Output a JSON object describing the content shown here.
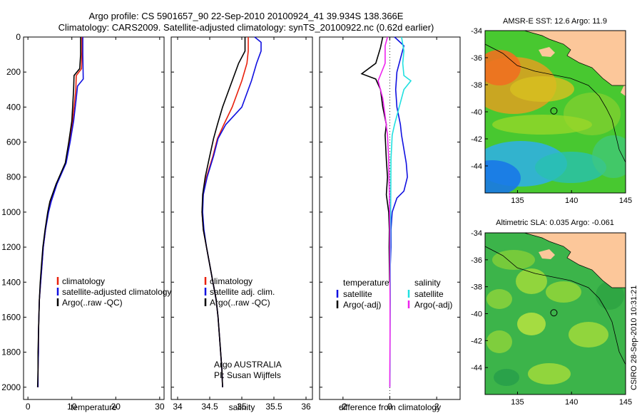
{
  "header": {
    "line1": "Argo profile: CS 5901657_90 22-Sep-2010 20100924_41 39.934S 138.366E",
    "line2": "Climatology: CARS2009. Satellite-adjusted climatology: synTS_20100922.nc (0.62d earlier)"
  },
  "colors": {
    "climatology": "#e8200c",
    "satellite": "#1010e0",
    "argo": "#000000",
    "salinity_satellite": "#20e0e0",
    "salinity_argo": "#ee22ee",
    "land": "#fcc79a",
    "ocean_green": "#3cb44a"
  },
  "chart_data": [
    {
      "type": "line",
      "name": "temperature-profile",
      "xlabel": "temperature",
      "xlim": [
        -1,
        31
      ],
      "xticks": [
        0,
        10,
        20,
        30
      ],
      "ylim": [
        2070,
        0
      ],
      "yticks": [
        0,
        200,
        400,
        600,
        800,
        1000,
        1200,
        1400,
        1600,
        1800,
        2000
      ],
      "legend_placement": "lower-center",
      "series": [
        {
          "key": "clim",
          "name": "climatology",
          "color": "#e8200c",
          "points": [
            [
              12.3,
              0
            ],
            [
              12.3,
              80
            ],
            [
              12.2,
              180
            ],
            [
              11.0,
              220
            ],
            [
              10.9,
              300
            ],
            [
              10.2,
              480
            ],
            [
              9.5,
              600
            ],
            [
              8.6,
              720
            ],
            [
              6.5,
              840
            ],
            [
              5.2,
              940
            ],
            [
              4.6,
              1000
            ],
            [
              4.0,
              1100
            ],
            [
              3.5,
              1200
            ],
            [
              3.2,
              1300
            ],
            [
              2.9,
              1400
            ],
            [
              2.6,
              1500
            ],
            [
              2.5,
              1600
            ],
            [
              2.4,
              1700
            ],
            [
              2.4,
              1800
            ],
            [
              2.3,
              1900
            ],
            [
              2.3,
              2000
            ]
          ]
        },
        {
          "key": "sat",
          "name": "satellite-adjusted climatology",
          "color": "#1010e0",
          "points": [
            [
              12.5,
              0
            ],
            [
              12.5,
              100
            ],
            [
              12.6,
              240
            ],
            [
              11.3,
              280
            ],
            [
              11.0,
              350
            ],
            [
              10.4,
              480
            ],
            [
              9.6,
              600
            ],
            [
              8.7,
              720
            ],
            [
              6.6,
              840
            ],
            [
              5.3,
              940
            ],
            [
              4.7,
              1000
            ],
            [
              4.0,
              1100
            ],
            [
              3.5,
              1200
            ],
            [
              3.2,
              1300
            ],
            [
              2.9,
              1400
            ],
            [
              2.6,
              1500
            ],
            [
              2.5,
              1600
            ],
            [
              2.4,
              1700
            ],
            [
              2.4,
              1800
            ],
            [
              2.3,
              1900
            ],
            [
              2.3,
              2000
            ]
          ]
        },
        {
          "key": "argo",
          "name": "Argo(..raw -QC)",
          "color": "#000000",
          "points": [
            [
              12.0,
              0
            ],
            [
              12.0,
              100
            ],
            [
              11.8,
              180
            ],
            [
              10.5,
              220
            ],
            [
              10.4,
              300
            ],
            [
              10.0,
              480
            ],
            [
              9.3,
              600
            ],
            [
              8.5,
              720
            ],
            [
              6.4,
              840
            ],
            [
              5.0,
              940
            ],
            [
              4.5,
              1000
            ],
            [
              3.9,
              1100
            ],
            [
              3.4,
              1200
            ],
            [
              3.1,
              1300
            ],
            [
              2.8,
              1400
            ],
            [
              2.6,
              1500
            ],
            [
              2.5,
              1600
            ],
            [
              2.4,
              1700
            ],
            [
              2.3,
              1800
            ],
            [
              2.3,
              1900
            ],
            [
              2.2,
              2000
            ]
          ]
        }
      ]
    },
    {
      "type": "line",
      "name": "salinity-profile",
      "xlabel": "salinity",
      "xlim": [
        33.9,
        36.1
      ],
      "xticks": [
        34,
        34.5,
        35,
        35.5,
        36
      ],
      "xticklabels": [
        "34",
        "34.5",
        "35",
        "35.5",
        "36"
      ],
      "ylim": [
        2070,
        0
      ],
      "legend_placement": "lower-center",
      "annotations": [
        "Argo AUSTRALIA",
        "PI: Susan Wijffels"
      ],
      "series": [
        {
          "key": "clim",
          "name": "climatology",
          "color": "#e8200c",
          "points": [
            [
              35.1,
              0
            ],
            [
              35.1,
              80
            ],
            [
              35.08,
              150
            ],
            [
              35.0,
              250
            ],
            [
              34.85,
              400
            ],
            [
              34.72,
              500
            ],
            [
              34.62,
              580
            ],
            [
              34.55,
              680
            ],
            [
              34.45,
              800
            ],
            [
              34.4,
              900
            ],
            [
              34.38,
              1000
            ],
            [
              34.4,
              1100
            ],
            [
              34.45,
              1200
            ],
            [
              34.5,
              1300
            ],
            [
              34.55,
              1400
            ],
            [
              34.6,
              1500
            ],
            [
              34.63,
              1600
            ],
            [
              34.65,
              1700
            ],
            [
              34.67,
              1800
            ],
            [
              34.69,
              1900
            ],
            [
              34.7,
              2000
            ]
          ]
        },
        {
          "key": "sat",
          "name": "satellite adj. clim.",
          "color": "#1010e0",
          "points": [
            [
              35.2,
              0
            ],
            [
              35.3,
              30
            ],
            [
              35.3,
              80
            ],
            [
              35.23,
              150
            ],
            [
              35.15,
              250
            ],
            [
              35.0,
              400
            ],
            [
              34.75,
              500
            ],
            [
              34.63,
              580
            ],
            [
              34.56,
              680
            ],
            [
              34.46,
              800
            ],
            [
              34.4,
              900
            ],
            [
              34.39,
              1000
            ],
            [
              34.41,
              1100
            ],
            [
              34.45,
              1200
            ],
            [
              34.5,
              1300
            ],
            [
              34.55,
              1400
            ],
            [
              34.6,
              1500
            ],
            [
              34.63,
              1600
            ],
            [
              34.65,
              1700
            ],
            [
              34.67,
              1800
            ],
            [
              34.69,
              1900
            ],
            [
              34.7,
              2000
            ]
          ]
        },
        {
          "key": "argo",
          "name": "Argo(..raw -QC)",
          "color": "#000000",
          "points": [
            [
              35.05,
              0
            ],
            [
              35.05,
              80
            ],
            [
              34.95,
              150
            ],
            [
              34.85,
              250
            ],
            [
              34.7,
              400
            ],
            [
              34.62,
              500
            ],
            [
              34.56,
              580
            ],
            [
              34.5,
              680
            ],
            [
              34.43,
              800
            ],
            [
              34.39,
              900
            ],
            [
              34.38,
              1000
            ],
            [
              34.4,
              1100
            ],
            [
              34.45,
              1200
            ],
            [
              34.5,
              1300
            ],
            [
              34.55,
              1400
            ],
            [
              34.6,
              1500
            ],
            [
              34.63,
              1600
            ],
            [
              34.65,
              1700
            ],
            [
              34.67,
              1800
            ],
            [
              34.69,
              1900
            ],
            [
              34.7,
              2000
            ]
          ]
        }
      ]
    },
    {
      "type": "line",
      "name": "difference-profile",
      "xlabel": "difference from climatology",
      "xlim": [
        -3,
        3
      ],
      "xticks": [
        -2,
        0,
        2
      ],
      "ylim": [
        2070,
        0
      ],
      "zero_line": "dotted",
      "legend_placement": "lower-center",
      "legend_groups": [
        "temperature",
        "salinity"
      ],
      "series": [
        {
          "key": "t_sat",
          "group": "temperature",
          "name": "satellite",
          "color": "#1010e0",
          "points": [
            [
              0.2,
              0
            ],
            [
              0.6,
              50
            ],
            [
              0.5,
              100
            ],
            [
              0.3,
              200
            ],
            [
              0.25,
              300
            ],
            [
              0.3,
              400
            ],
            [
              0.45,
              500
            ],
            [
              0.5,
              560
            ],
            [
              0.6,
              640
            ],
            [
              0.7,
              720
            ],
            [
              0.75,
              800
            ],
            [
              0.6,
              880
            ],
            [
              0.3,
              920
            ],
            [
              0.1,
              1000
            ],
            [
              0.05,
              1100
            ],
            [
              0.05,
              1200
            ],
            [
              0.02,
              1300
            ],
            [
              0.01,
              1400
            ]
          ]
        },
        {
          "key": "t_argo",
          "group": "temperature",
          "name": "Argo(-adj)",
          "color": "#000000",
          "points": [
            [
              -0.3,
              0
            ],
            [
              -0.4,
              60
            ],
            [
              -0.6,
              150
            ],
            [
              -1.2,
              210
            ],
            [
              -0.6,
              240
            ],
            [
              -0.4,
              300
            ],
            [
              -0.3,
              400
            ],
            [
              -0.15,
              500
            ],
            [
              -0.2,
              560
            ],
            [
              -0.15,
              700
            ],
            [
              -0.1,
              800
            ],
            [
              -0.15,
              900
            ],
            [
              -0.05,
              1000
            ],
            [
              -0.02,
              1100
            ],
            [
              -0.03,
              1200
            ],
            [
              -0.02,
              1300
            ],
            [
              -0.01,
              1400
            ]
          ]
        },
        {
          "key": "s_sat",
          "group": "salinity",
          "name": "satellite",
          "color": "#20e0e0",
          "points": [
            [
              0.5,
              0
            ],
            [
              0.6,
              80
            ],
            [
              0.55,
              150
            ],
            [
              0.6,
              220
            ],
            [
              0.9,
              250
            ],
            [
              0.6,
              300
            ],
            [
              0.4,
              400
            ],
            [
              0.2,
              500
            ],
            [
              0.1,
              560
            ],
            [
              0.05,
              700
            ],
            [
              0.04,
              900
            ],
            [
              0.03,
              1100
            ],
            [
              0.02,
              1300
            ],
            [
              0.02,
              1500
            ],
            [
              0.01,
              1700
            ],
            [
              0.01,
              1900
            ],
            [
              0.0,
              2000
            ]
          ]
        },
        {
          "key": "s_argo",
          "group": "salinity",
          "name": "Argo(-adj)",
          "color": "#ee22ee",
          "points": [
            [
              -0.1,
              0
            ],
            [
              -0.2,
              50
            ],
            [
              -0.2,
              150
            ],
            [
              -0.5,
              250
            ],
            [
              -0.3,
              350
            ],
            [
              -0.2,
              450
            ],
            [
              -0.1,
              560
            ],
            [
              -0.05,
              700
            ],
            [
              -0.02,
              900
            ],
            [
              0.0,
              1100
            ],
            [
              0.0,
              1300
            ],
            [
              0.01,
              1500
            ],
            [
              0.01,
              1700
            ],
            [
              0.0,
              1900
            ],
            [
              0.0,
              2000
            ]
          ]
        }
      ]
    },
    {
      "type": "heatmap",
      "name": "sst-map",
      "title": "AMSR-E SST: 12.6 Argo: 11.9",
      "xlim": [
        132,
        145
      ],
      "ylim": [
        -46,
        -34
      ],
      "xticks": [
        135,
        140,
        145
      ],
      "yticks": [
        -34,
        -36,
        -38,
        -40,
        -42,
        -44
      ],
      "marker": [
        138.366,
        -39.934
      ]
    },
    {
      "type": "heatmap",
      "name": "sla-map",
      "title": "Altimetric SLA: 0.035 Argo: -0.061",
      "xlim": [
        132,
        145
      ],
      "ylim": [
        -46,
        -34
      ],
      "xticks": [
        135,
        140,
        145
      ],
      "yticks": [
        -34,
        -36,
        -38,
        -40,
        -42,
        -44
      ],
      "marker": [
        138.366,
        -39.934
      ]
    }
  ],
  "footer": {
    "credit": "CSIRO 28-Sep-2010 10:31:21"
  }
}
